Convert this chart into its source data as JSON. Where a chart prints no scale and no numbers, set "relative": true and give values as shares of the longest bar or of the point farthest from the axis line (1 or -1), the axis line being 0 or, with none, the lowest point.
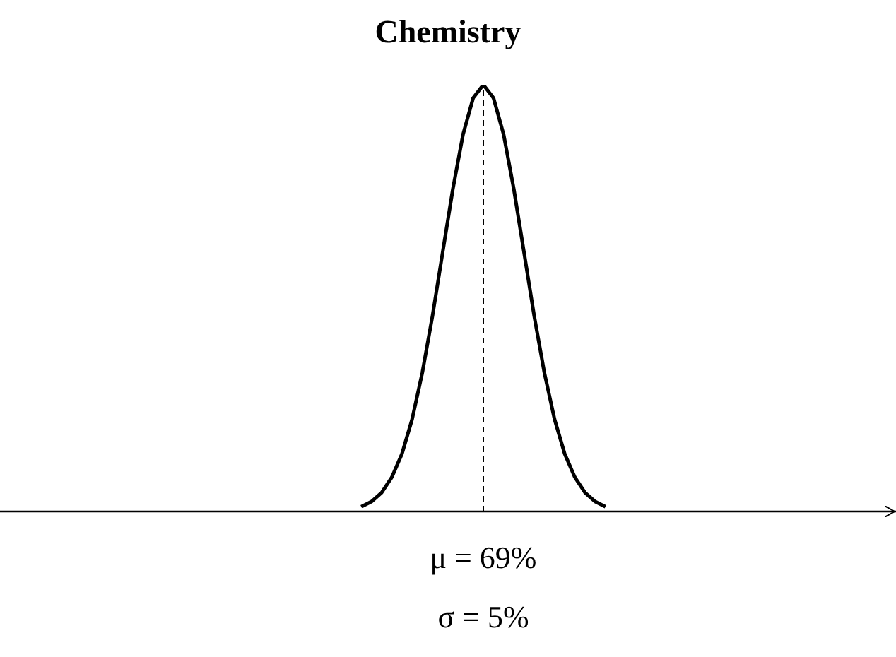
{
  "chart_data": {
    "type": "line",
    "title": "Chemistry",
    "relative": true,
    "categories": [
      null,
      null,
      null,
      null,
      null,
      null,
      null,
      null,
      null,
      null,
      null,
      null,
      null,
      null,
      null,
      null,
      null,
      null,
      null,
      null,
      null,
      null,
      null,
      null,
      null
    ],
    "grid": false,
    "legend": false,
    "marker": "none",
    "line_style": "solid",
    "series": [
      {
        "color": "#000000",
        "values": [
          0.011,
          0.023,
          0.044,
          0.08,
          0.135,
          0.216,
          0.325,
          0.458,
          0.607,
          0.755,
          0.883,
          0.969,
          1,
          0.969,
          0.883,
          0.755,
          0.607,
          0.458,
          0.325,
          0.216,
          0.135,
          0.08,
          0.044,
          0.023,
          0.011
        ]
      }
    ],
    "annotations": [
      "μ = 69%",
      "σ = 5%"
    ]
  }
}
